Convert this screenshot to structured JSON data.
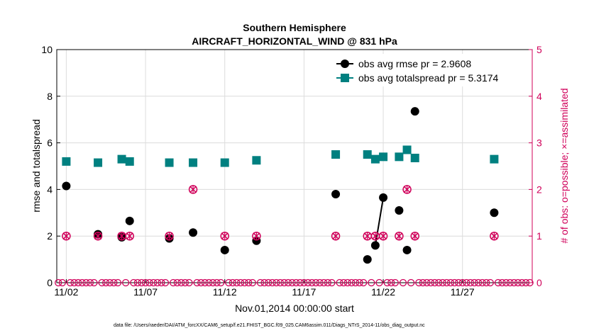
{
  "chart_data": {
    "type": "scatter",
    "title": "Southern Hemisphere",
    "subtitle": "AIRCRAFT_HORIZONTAL_WIND @ 831 hPa",
    "xlabel": "Nov.01,2014 00:00:00 start",
    "ylabel": "rmse and totalspread",
    "ylabel_right": "# of obs: o=possible; ×=assimilated",
    "xlim": [
      1.4,
      31.4
    ],
    "ylim": [
      0,
      10
    ],
    "ylim_right": [
      0,
      5
    ],
    "x_ticks": [
      2,
      7,
      12,
      17,
      22,
      27
    ],
    "x_tick_labels": [
      "11/02",
      "11/07",
      "11/12",
      "11/17",
      "11/22",
      "11/27"
    ],
    "y_ticks": [
      0,
      2,
      4,
      6,
      8,
      10
    ],
    "y_tick_labels": [
      "0",
      "2",
      "4",
      "6",
      "8",
      "10"
    ],
    "y_ticks_right": [
      0,
      1,
      2,
      3,
      4,
      5
    ],
    "y_tick_labels_right": [
      "0",
      "1",
      "2",
      "3",
      "4",
      "5"
    ],
    "grid": true,
    "legend_position": "top-right",
    "series": [
      {
        "name": "obs avg rmse pr = 2.9608",
        "color": "#000000",
        "marker": "circle",
        "points": [
          [
            2.0,
            4.15
          ],
          [
            4.0,
            2.08
          ],
          [
            5.5,
            1.95
          ],
          [
            6.0,
            2.65
          ],
          [
            8.5,
            1.9
          ],
          [
            10.0,
            2.15
          ],
          [
            12.0,
            1.4
          ],
          [
            14.0,
            1.8
          ],
          [
            19.0,
            3.8
          ],
          [
            21.0,
            1.0
          ],
          [
            21.5,
            1.6
          ],
          [
            22.0,
            3.65
          ],
          [
            23.0,
            3.1
          ],
          [
            23.5,
            1.4
          ],
          [
            24.0,
            7.35
          ],
          [
            29.0,
            3.0
          ]
        ],
        "connected_segments": [
          [
            21.5,
            22.0
          ]
        ]
      },
      {
        "name": "obs avg totalspread pr = 5.3174",
        "color": "#008080",
        "marker": "square",
        "points": [
          [
            2.0,
            5.2
          ],
          [
            4.0,
            5.15
          ],
          [
            5.5,
            5.3
          ],
          [
            6.0,
            5.2
          ],
          [
            8.5,
            5.15
          ],
          [
            10.0,
            5.15
          ],
          [
            12.0,
            5.15
          ],
          [
            14.0,
            5.25
          ],
          [
            19.0,
            5.5
          ],
          [
            21.0,
            5.5
          ],
          [
            21.5,
            5.3
          ],
          [
            22.0,
            5.4
          ],
          [
            23.0,
            5.4
          ],
          [
            23.5,
            5.7
          ],
          [
            24.0,
            5.35
          ],
          [
            29.0,
            5.3
          ]
        ]
      },
      {
        "name": "obs possible",
        "color": "#d0005a",
        "marker": "open-circle",
        "axis": "right",
        "points": [
          [
            2.0,
            1
          ],
          [
            4.0,
            1
          ],
          [
            5.5,
            1
          ],
          [
            6.0,
            1
          ],
          [
            8.5,
            1
          ],
          [
            10.0,
            2
          ],
          [
            12.0,
            1
          ],
          [
            14.0,
            1
          ],
          [
            19.0,
            1
          ],
          [
            21.0,
            1
          ],
          [
            21.5,
            1
          ],
          [
            22.0,
            1
          ],
          [
            23.0,
            1
          ],
          [
            23.5,
            2
          ],
          [
            24.0,
            1
          ],
          [
            29.0,
            1
          ]
        ],
        "zero_points": "all remaining 6-hourly times from 1.5 to 31.25"
      },
      {
        "name": "obs assimilated",
        "color": "#d0005a",
        "marker": "cross",
        "axis": "right",
        "points": [
          [
            2.0,
            1
          ],
          [
            4.0,
            1
          ],
          [
            5.5,
            1
          ],
          [
            6.0,
            1
          ],
          [
            8.5,
            1
          ],
          [
            10.0,
            2
          ],
          [
            12.0,
            1
          ],
          [
            14.0,
            1
          ],
          [
            19.0,
            1
          ],
          [
            21.0,
            1
          ],
          [
            21.5,
            1
          ],
          [
            22.0,
            1
          ],
          [
            23.0,
            1
          ],
          [
            23.5,
            2
          ],
          [
            24.0,
            1
          ],
          [
            29.0,
            1
          ]
        ]
      }
    ]
  },
  "footer": "data file: /Users/raeder/DAI/ATM_forcXX/CAM6_setup/f.e21.FHIST_BGC.f09_025.CAM6assim.011/Diags_NTrS_2014-11/obs_diag_output.nc"
}
